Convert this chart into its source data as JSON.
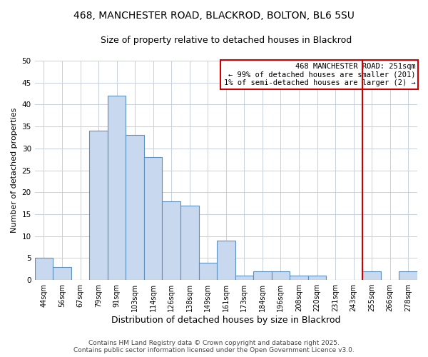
{
  "title1": "468, MANCHESTER ROAD, BLACKROD, BOLTON, BL6 5SU",
  "title2": "Size of property relative to detached houses in Blackrod",
  "xlabel": "Distribution of detached houses by size in Blackrod",
  "ylabel": "Number of detached properties",
  "bin_labels": [
    "44sqm",
    "56sqm",
    "67sqm",
    "79sqm",
    "91sqm",
    "103sqm",
    "114sqm",
    "126sqm",
    "138sqm",
    "149sqm",
    "161sqm",
    "173sqm",
    "184sqm",
    "196sqm",
    "208sqm",
    "220sqm",
    "231sqm",
    "243sqm",
    "255sqm",
    "266sqm",
    "278sqm"
  ],
  "bar_values": [
    5,
    3,
    0,
    34,
    42,
    33,
    28,
    18,
    17,
    4,
    9,
    1,
    2,
    2,
    1,
    1,
    0,
    0,
    2,
    0,
    2
  ],
  "bar_color": "#c8d9ef",
  "bar_edge_color": "#5a8fbe",
  "ylim": [
    0,
    50
  ],
  "yticks": [
    0,
    5,
    10,
    15,
    20,
    25,
    30,
    35,
    40,
    45,
    50
  ],
  "property_line_color": "#cc0000",
  "property_line_idx": 18,
  "legend_title": "468 MANCHESTER ROAD: 251sqm",
  "legend_line1": "← 99% of detached houses are smaller (201)",
  "legend_line2": "1% of semi-detached houses are larger (2) →",
  "footer1": "Contains HM Land Registry data © Crown copyright and database right 2025.",
  "footer2": "Contains public sector information licensed under the Open Government Licence v3.0.",
  "plot_bg_color": "#ffffff",
  "fig_bg_color": "#ffffff",
  "grid_color": "#c8d0dc",
  "title1_fontsize": 10,
  "title2_fontsize": 9,
  "xlabel_fontsize": 9,
  "ylabel_fontsize": 8,
  "tick_fontsize": 7,
  "footer_fontsize": 6.5,
  "legend_fontsize": 7.5
}
